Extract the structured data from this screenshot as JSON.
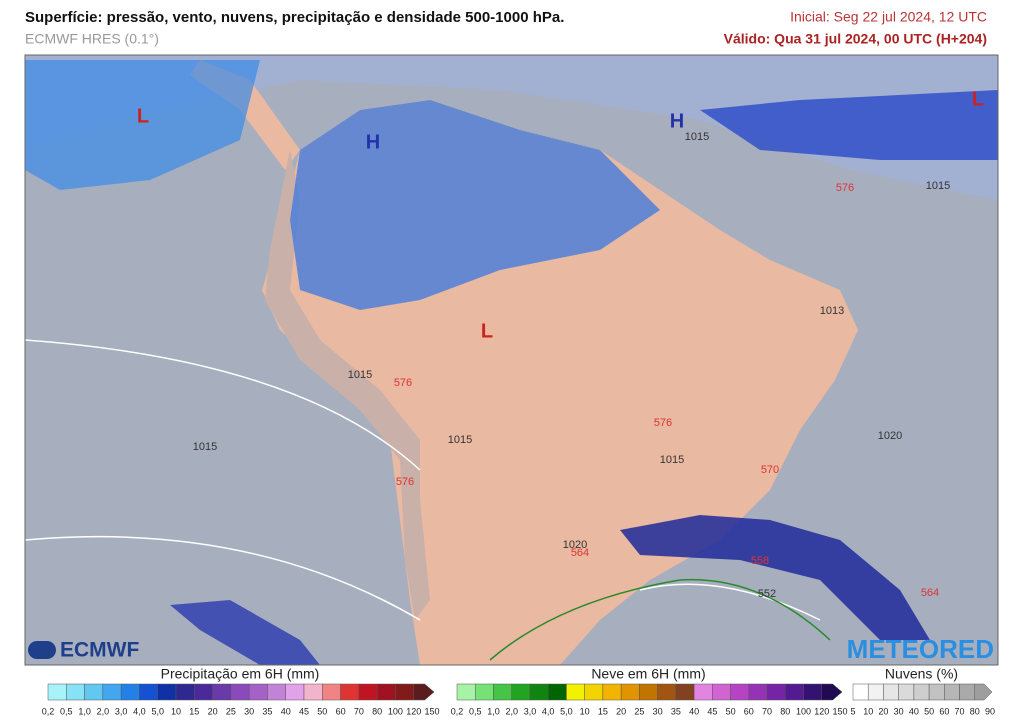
{
  "header": {
    "title": "Superfície: pressão, vento, nuvens, precipitação e densidade 500-1000 hPa.",
    "model": "ECMWF HRES (0.1°)",
    "initial": "Inicial: Seg 22 jul 2024, 12 UTC",
    "valid": "Válido: Qua 31 jul 2024, 00 UTC (H+204)"
  },
  "map": {
    "centers": [
      "L",
      "H",
      "H",
      "L",
      "L"
    ],
    "isobars": [
      "1015",
      "1015",
      "1013",
      "1020",
      "1015",
      "1015",
      "1020",
      "1015",
      "1015"
    ],
    "thickness": [
      "576",
      "576",
      "576",
      "570",
      "564",
      "558",
      "552",
      "564",
      "576"
    ]
  },
  "logos": {
    "left": "ECMWF",
    "right": "METEORED"
  },
  "legends": [
    {
      "title": "Precipitação em 6H (mm)",
      "ticks": [
        "0,2",
        "0,5",
        "1,0",
        "2,0",
        "3,0",
        "4,0",
        "5,0",
        "10",
        "15",
        "20",
        "25",
        "30",
        "35",
        "40",
        "45",
        "50",
        "60",
        "70",
        "80",
        "100",
        "120",
        "150"
      ],
      "colors": [
        "#a8f2fa",
        "#86e2f4",
        "#62c8f2",
        "#42a6f0",
        "#2280e6",
        "#1452d2",
        "#1030a6",
        "#2e2890",
        "#4a2a9a",
        "#6a3aaa",
        "#8a4abb",
        "#a462c8",
        "#c282d8",
        "#e2a2ea",
        "#f2b4cc",
        "#f08484",
        "#e03434",
        "#c01422",
        "#a01222",
        "#821a1a",
        "#5a1c1c"
      ]
    },
    {
      "title": "Neve em 6H (mm)",
      "ticks": [
        "0,2",
        "0,5",
        "1,0",
        "2,0",
        "3,0",
        "4,0",
        "5,0",
        "10",
        "15",
        "20",
        "25",
        "30",
        "35",
        "40",
        "45",
        "50",
        "60",
        "70",
        "80",
        "100",
        "120",
        "150"
      ],
      "colors": [
        "#a6f2a6",
        "#76e276",
        "#46c446",
        "#22a422",
        "#108410",
        "#006400",
        "#f2f200",
        "#f2d400",
        "#f2b400",
        "#e29400",
        "#c27400",
        "#a25412",
        "#824222",
        "#e284e2",
        "#d264d2",
        "#b444c4",
        "#9434b4",
        "#7424a4",
        "#541a92",
        "#341272",
        "#200a52"
      ]
    },
    {
      "title": "Nuvens (%)",
      "ticks": [
        "5",
        "10",
        "20",
        "30",
        "40",
        "50",
        "60",
        "70",
        "80",
        "90"
      ],
      "colors": [
        "#ffffff",
        "#f2f2f2",
        "#e6e6e6",
        "#dadada",
        "#cecece",
        "#c2c2c2",
        "#b6b6b6",
        "#aaaaaa",
        "#9e9e9e"
      ]
    }
  ]
}
